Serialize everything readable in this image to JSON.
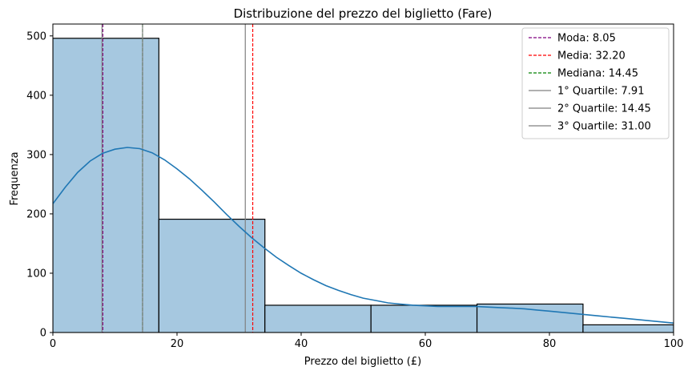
{
  "chart_data": {
    "type": "bar",
    "title": "Distribuzione del prezzo del biglietto (Fare)",
    "xlabel": "Prezzo del biglietto (£)",
    "ylabel": "Frequenza",
    "xlim": [
      0,
      100
    ],
    "ylim": [
      0,
      520
    ],
    "xticks": [
      0,
      20,
      40,
      60,
      80,
      100
    ],
    "yticks": [
      0,
      100,
      200,
      300,
      400,
      500
    ],
    "grid": false,
    "legend_position": "top-right",
    "histogram": {
      "bin_edges": [
        0,
        17.08,
        34.16,
        51.25,
        68.33,
        85.41,
        100
      ],
      "counts": [
        496,
        191,
        46,
        46,
        48,
        13
      ],
      "fill_color": "#a6c8e0",
      "edge_color": "#000000"
    },
    "kde": {
      "color": "#1f77b4",
      "x": [
        0,
        2,
        4,
        6,
        8,
        10,
        12,
        14,
        16,
        18,
        20,
        22,
        24,
        26,
        28,
        30,
        32,
        34,
        36,
        38,
        40,
        42,
        44,
        46,
        48,
        50,
        52,
        54,
        56,
        58,
        60,
        62,
        64,
        66,
        68,
        70,
        72,
        74,
        76,
        78,
        80,
        82,
        84,
        86,
        88,
        90,
        92,
        94,
        96,
        98,
        100
      ],
      "y": [
        217,
        245,
        270,
        289,
        302,
        309,
        312,
        310,
        303,
        291,
        276,
        259,
        240,
        220,
        199,
        179,
        160,
        143,
        127,
        113,
        100,
        89,
        79,
        71,
        64,
        58,
        54,
        50,
        48,
        46,
        45,
        44,
        44,
        44,
        44,
        43,
        42,
        41,
        40,
        38,
        36,
        34,
        32,
        30,
        28,
        26,
        24,
        22,
        20,
        18,
        16
      ]
    },
    "reference_lines": [
      {
        "label": "Moda: 8.05",
        "x": 8.05,
        "color": "#800080",
        "style": "dashed"
      },
      {
        "label": "Media: 32.20",
        "x": 32.2,
        "color": "#ff0000",
        "style": "dashed"
      },
      {
        "label": "Mediana: 14.45",
        "x": 14.45,
        "color": "#008000",
        "style": "dashed"
      },
      {
        "label": "1° Quartile: 7.91",
        "x": 7.91,
        "color": "#808080",
        "style": "solid"
      },
      {
        "label": "2° Quartile: 14.45",
        "x": 14.45,
        "color": "#808080",
        "style": "solid"
      },
      {
        "label": "3° Quartile: 31.00",
        "x": 31.0,
        "color": "#808080",
        "style": "solid"
      }
    ]
  }
}
